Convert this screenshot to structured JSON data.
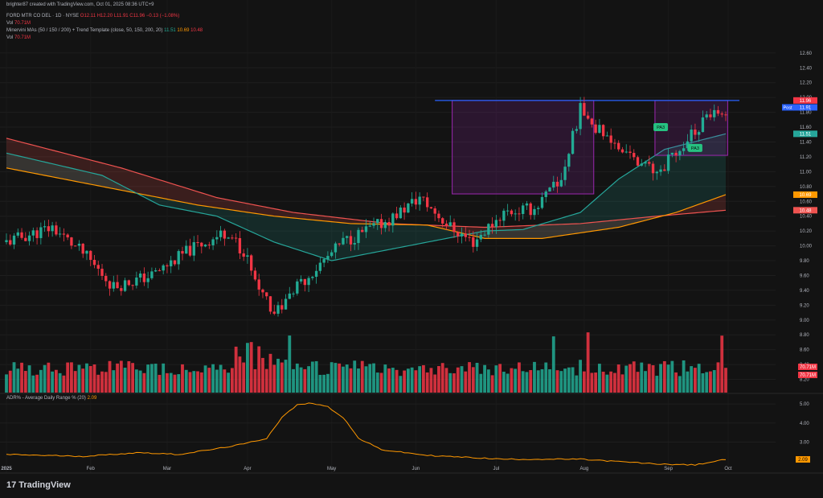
{
  "header": {
    "credit": "brighter87 created with TradingView.com, Oct 01, 2025 08:36 UTC+9",
    "symbol": "FORD MTR CO DEL · 1D · NYSE",
    "ohlc": "O12.11 H12.20 L11.91 C11.96 −0.13 (−1.08%)",
    "vol_label": "Vol",
    "vol_value": "70.71M",
    "ma_label": "Minervini MAs (50 / 150 / 200) + Trend Template (close, 50, 150, 200, 20)",
    "ma50": "11.51",
    "ma150": "10.69",
    "ma200": "10.48",
    "vol2_label": "Vol",
    "vol2_value": "70.71M",
    "adr_label": "ADR% - Average Daily Range % (20)",
    "adr_value": "2.09"
  },
  "footer": {
    "brand": "TradingView",
    "logo": "17"
  },
  "colors": {
    "bg": "#131313",
    "up": "#22ab94",
    "down": "#f23645",
    "ma50": "#26a69a",
    "ma150": "#ff9800",
    "ma200": "#ef5350",
    "box": "#9c27b0",
    "resistance": "#2962ff",
    "adr": "#ff9800"
  },
  "chart_data": [
    {
      "type": "candlestick",
      "title": "FORD MTR CO DEL · 1D · NYSE",
      "x_labels": [
        "2025",
        "Feb",
        "Mar",
        "Apr",
        "May",
        "Jun",
        "Jul",
        "Aug",
        "Sep",
        "Oct"
      ],
      "y_ticks": [
        "12.60",
        "12.40",
        "12.20",
        "12.00",
        "11.80",
        "11.60",
        "11.40",
        "11.20",
        "11.00",
        "10.80",
        "10.60",
        "10.40",
        "10.20",
        "10.00",
        "9.80",
        "9.60",
        "9.40",
        "9.20",
        "9.00",
        "8.80",
        "8.60",
        "8.40",
        "8.20"
      ],
      "ylim": [
        8.0,
        12.75
      ],
      "price_tags": [
        {
          "label": "11.96",
          "value": 11.96,
          "color": "#f23645"
        },
        {
          "label": "11.91",
          "value": 11.91,
          "color": "#2962ff",
          "prefix": "Post"
        },
        {
          "label": "11.51",
          "value": 11.51,
          "color": "#26a69a"
        },
        {
          "label": "10.69",
          "value": 10.69,
          "color": "#ff9800"
        },
        {
          "label": "10.48",
          "value": 10.48,
          "color": "#ef5350"
        }
      ],
      "resistance_level": 11.96,
      "boxes": [
        {
          "from": "2025-06-16",
          "to": "2025-08-05",
          "low": 10.7,
          "high": 11.96
        },
        {
          "from": "2025-08-28",
          "to": "2025-09-29",
          "low": 11.22,
          "high": 11.96
        }
      ],
      "badges": [
        {
          "label": "PA3",
          "date": "2025-08-29",
          "value": 11.6
        },
        {
          "label": "PA3",
          "date": "2025-09-11",
          "value": 11.32
        }
      ],
      "series_ma": {
        "ma50_anchors": [
          [
            0,
            11.25
          ],
          [
            25,
            10.95
          ],
          [
            40,
            10.55
          ],
          [
            55,
            10.4
          ],
          [
            70,
            10.05
          ],
          [
            85,
            9.8
          ],
          [
            100,
            9.95
          ],
          [
            115,
            10.1
          ],
          [
            125,
            10.2
          ],
          [
            135,
            10.22
          ],
          [
            150,
            10.45
          ],
          [
            160,
            10.9
          ],
          [
            172,
            11.3
          ],
          [
            188,
            11.51
          ]
        ],
        "ma150_anchors": [
          [
            0,
            11.05
          ],
          [
            30,
            10.75
          ],
          [
            50,
            10.55
          ],
          [
            70,
            10.4
          ],
          [
            90,
            10.3
          ],
          [
            110,
            10.28
          ],
          [
            125,
            10.1
          ],
          [
            140,
            10.1
          ],
          [
            160,
            10.25
          ],
          [
            175,
            10.45
          ],
          [
            188,
            10.69
          ]
        ],
        "ma200_anchors": [
          [
            0,
            11.45
          ],
          [
            30,
            11.05
          ],
          [
            55,
            10.65
          ],
          [
            75,
            10.45
          ],
          [
            100,
            10.3
          ],
          [
            125,
            10.25
          ],
          [
            150,
            10.3
          ],
          [
            170,
            10.4
          ],
          [
            188,
            10.48
          ]
        ]
      },
      "volume_max_m": 190,
      "last_volume_label": "70.71M"
    },
    {
      "type": "line",
      "title": "ADR% - Average Daily Range % (20)",
      "y_ticks": [
        "5.00",
        "4.00",
        "3.00"
      ],
      "ylim": [
        1.5,
        5.3
      ],
      "last_value": "2.09",
      "anchors": [
        [
          0,
          2.35
        ],
        [
          20,
          2.25
        ],
        [
          35,
          2.45
        ],
        [
          45,
          2.35
        ],
        [
          55,
          2.65
        ],
        [
          62,
          2.9
        ],
        [
          68,
          3.2
        ],
        [
          72,
          4.3
        ],
        [
          76,
          4.95
        ],
        [
          80,
          5.05
        ],
        [
          84,
          4.85
        ],
        [
          88,
          4.3
        ],
        [
          92,
          3.2
        ],
        [
          98,
          2.6
        ],
        [
          110,
          2.3
        ],
        [
          130,
          2.1
        ],
        [
          150,
          2.1
        ],
        [
          170,
          1.85
        ],
        [
          180,
          1.8
        ],
        [
          188,
          2.09
        ]
      ]
    }
  ]
}
